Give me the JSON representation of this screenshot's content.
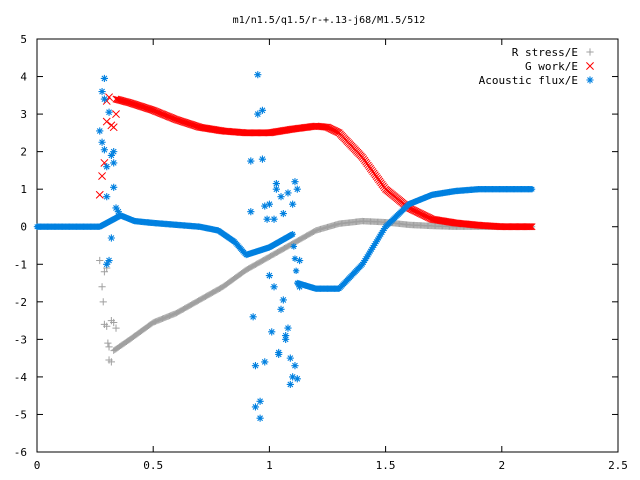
{
  "chart_data": {
    "type": "scatter",
    "title": "m1/n1.5/q1.5/r-+.13-j68/M1.5/512",
    "xlabel": "",
    "ylabel": "",
    "xlim": [
      0,
      2.5
    ],
    "ylim": [
      -6,
      5
    ],
    "x_ticks": [
      0,
      0.5,
      1,
      1.5,
      2,
      2.5
    ],
    "x_tick_labels": [
      "0",
      "0.5",
      "1",
      "1.5",
      "2",
      "2.5"
    ],
    "y_ticks": [
      -6,
      -5,
      -4,
      -3,
      -2,
      -1,
      0,
      1,
      2,
      3,
      4,
      5
    ],
    "y_tick_labels": [
      "-6",
      "-5",
      "-4",
      "-3",
      "-2",
      "-1",
      "0",
      "1",
      "2",
      "3",
      "4",
      "5"
    ],
    "grid": false,
    "legend_position": "top-right",
    "series": [
      {
        "name": "R stress/E",
        "marker": "plus",
        "color": "#a0a0a0",
        "curve": [
          [
            0.33,
            -3.3
          ],
          [
            0.4,
            -3.0
          ],
          [
            0.5,
            -2.55
          ],
          [
            0.6,
            -2.3
          ],
          [
            0.7,
            -1.95
          ],
          [
            0.8,
            -1.6
          ],
          [
            0.9,
            -1.15
          ],
          [
            1.0,
            -0.8
          ],
          [
            1.1,
            -0.45
          ],
          [
            1.2,
            -0.1
          ],
          [
            1.3,
            0.08
          ],
          [
            1.4,
            0.15
          ],
          [
            1.5,
            0.12
          ],
          [
            1.6,
            0.05
          ],
          [
            1.7,
            0.02
          ],
          [
            1.8,
            0.0
          ],
          [
            2.0,
            0.0
          ],
          [
            2.13,
            0.0
          ]
        ],
        "scattered": [
          [
            0.27,
            -0.9
          ],
          [
            0.28,
            -1.6
          ],
          [
            0.285,
            -2.0
          ],
          [
            0.29,
            -2.6
          ],
          [
            0.3,
            -2.65
          ],
          [
            0.305,
            -3.1
          ],
          [
            0.31,
            -3.2
          ],
          [
            0.31,
            -3.55
          ],
          [
            0.32,
            -2.5
          ],
          [
            0.32,
            -3.6
          ],
          [
            0.33,
            -2.55
          ],
          [
            0.34,
            -2.7
          ],
          [
            0.3,
            -1.1
          ],
          [
            0.29,
            -1.2
          ]
        ]
      },
      {
        "name": "G work/E",
        "marker": "cross",
        "color": "#ff0000",
        "curve": [
          [
            0.34,
            3.4
          ],
          [
            0.4,
            3.3
          ],
          [
            0.5,
            3.1
          ],
          [
            0.6,
            2.85
          ],
          [
            0.7,
            2.65
          ],
          [
            0.8,
            2.55
          ],
          [
            0.9,
            2.5
          ],
          [
            1.0,
            2.5
          ],
          [
            1.1,
            2.6
          ],
          [
            1.2,
            2.68
          ],
          [
            1.25,
            2.65
          ],
          [
            1.3,
            2.5
          ],
          [
            1.4,
            1.85
          ],
          [
            1.5,
            1.0
          ],
          [
            1.6,
            0.5
          ],
          [
            1.7,
            0.2
          ],
          [
            1.8,
            0.1
          ],
          [
            1.9,
            0.04
          ],
          [
            2.0,
            0.0
          ],
          [
            2.13,
            0.0
          ]
        ],
        "scattered": [
          [
            0.27,
            0.85
          ],
          [
            0.28,
            1.35
          ],
          [
            0.29,
            1.7
          ],
          [
            0.3,
            2.8
          ],
          [
            0.3,
            3.35
          ],
          [
            0.31,
            3.45
          ],
          [
            0.32,
            2.7
          ],
          [
            0.33,
            2.65
          ],
          [
            0.34,
            3.0
          ]
        ]
      },
      {
        "name": "Acoustic flux/E",
        "marker": "star",
        "color": "#0080e0",
        "curve": [
          [
            0.0,
            0.0
          ],
          [
            0.1,
            0.0
          ],
          [
            0.2,
            0.0
          ],
          [
            0.27,
            0.0
          ],
          [
            0.36,
            0.3
          ],
          [
            0.42,
            0.15
          ],
          [
            0.5,
            0.1
          ],
          [
            0.6,
            0.05
          ],
          [
            0.7,
            0.0
          ],
          [
            0.78,
            -0.1
          ],
          [
            0.85,
            -0.4
          ],
          [
            0.9,
            -0.75
          ],
          [
            1.0,
            -0.55
          ],
          [
            1.1,
            -0.2
          ],
          [
            1.12,
            -1.5
          ],
          [
            1.2,
            -1.65
          ],
          [
            1.3,
            -1.65
          ],
          [
            1.4,
            -1.0
          ],
          [
            1.5,
            0.0
          ],
          [
            1.6,
            0.6
          ],
          [
            1.7,
            0.85
          ],
          [
            1.8,
            0.95
          ],
          [
            1.9,
            1.0
          ],
          [
            2.0,
            1.0
          ],
          [
            2.13,
            1.0
          ]
        ],
        "scattered": [
          [
            0.27,
            2.55
          ],
          [
            0.28,
            2.25
          ],
          [
            0.28,
            3.6
          ],
          [
            0.29,
            3.95
          ],
          [
            0.29,
            3.4
          ],
          [
            0.29,
            2.05
          ],
          [
            0.3,
            1.6
          ],
          [
            0.3,
            0.8
          ],
          [
            0.31,
            3.05
          ],
          [
            0.32,
            1.9
          ],
          [
            0.32,
            -0.3
          ],
          [
            0.31,
            -0.9
          ],
          [
            0.3,
            -1.0
          ],
          [
            0.33,
            2.0
          ],
          [
            0.33,
            1.7
          ],
          [
            0.33,
            1.05
          ],
          [
            0.34,
            0.5
          ],
          [
            0.35,
            0.4
          ],
          [
            0.92,
            1.75
          ],
          [
            0.92,
            0.4
          ],
          [
            0.93,
            -2.4
          ],
          [
            0.94,
            -3.7
          ],
          [
            0.94,
            -4.8
          ],
          [
            0.95,
            4.05
          ],
          [
            0.95,
            3.0
          ],
          [
            0.96,
            -5.1
          ],
          [
            0.96,
            -4.65
          ],
          [
            0.97,
            3.1
          ],
          [
            0.97,
            1.8
          ],
          [
            0.98,
            -3.6
          ],
          [
            0.98,
            0.55
          ],
          [
            0.99,
            0.2
          ],
          [
            1.0,
            -1.3
          ],
          [
            1.0,
            0.6
          ],
          [
            1.01,
            -2.8
          ],
          [
            1.02,
            -1.6
          ],
          [
            1.02,
            0.2
          ],
          [
            1.03,
            1.15
          ],
          [
            1.03,
            1.0
          ],
          [
            1.04,
            -3.4
          ],
          [
            1.04,
            -3.35
          ],
          [
            1.05,
            -2.2
          ],
          [
            1.05,
            0.8
          ],
          [
            1.06,
            -1.95
          ],
          [
            1.06,
            0.35
          ],
          [
            1.07,
            -2.9
          ],
          [
            1.07,
            -3.0
          ],
          [
            1.08,
            -2.7
          ],
          [
            1.08,
            0.9
          ],
          [
            1.09,
            -3.5
          ],
          [
            1.09,
            -4.2
          ],
          [
            1.1,
            -4.0
          ],
          [
            1.1,
            0.6
          ],
          [
            1.11,
            1.2
          ],
          [
            1.11,
            -3.7
          ],
          [
            1.12,
            -4.05
          ],
          [
            1.12,
            1.0
          ],
          [
            1.13,
            -0.9
          ],
          [
            1.13,
            -1.6
          ]
        ]
      }
    ]
  }
}
